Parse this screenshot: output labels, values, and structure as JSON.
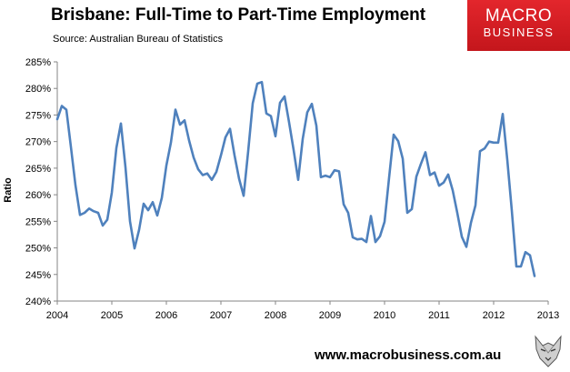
{
  "header": {
    "title": "Brisbane: Full-Time to Part-Time Employment",
    "source": "Source: Australian Bureau of Statistics"
  },
  "logo": {
    "line1": "MACRO",
    "line2": "BUSINESS",
    "color": "#d71f26"
  },
  "footer": {
    "url": "www.macrobusiness.com.au"
  },
  "chart_data": {
    "type": "line",
    "title": "Brisbane: Full-Time to Part-Time Employment",
    "xlabel": "",
    "ylabel": "Ratio",
    "xlim": [
      2004,
      2013
    ],
    "ylim": [
      240,
      285
    ],
    "x_ticks": [
      "2004",
      "2005",
      "2006",
      "2007",
      "2008",
      "2009",
      "2010",
      "2011",
      "2012",
      "2013"
    ],
    "y_ticks": [
      "240%",
      "245%",
      "250%",
      "255%",
      "260%",
      "265%",
      "270%",
      "275%",
      "280%",
      "285%"
    ],
    "grid": false,
    "line_color": "#4f81bd",
    "series": [
      {
        "x": [
          2004.0,
          2004.083,
          2004.167,
          2004.25,
          2004.333,
          2004.417,
          2004.5,
          2004.583,
          2004.667,
          2004.75,
          2004.833,
          2004.917,
          2005.0,
          2005.083,
          2005.167,
          2005.25,
          2005.333,
          2005.417,
          2005.5,
          2005.583,
          2005.667,
          2005.75,
          2005.833,
          2005.917,
          2006.0,
          2006.083,
          2006.167,
          2006.25,
          2006.333,
          2006.417,
          2006.5,
          2006.583,
          2006.667,
          2006.75,
          2006.833,
          2006.917,
          2007.0,
          2007.083,
          2007.167,
          2007.25,
          2007.333,
          2007.417,
          2007.5,
          2007.583,
          2007.667,
          2007.75,
          2007.833,
          2007.917,
          2008.0,
          2008.083,
          2008.167,
          2008.25,
          2008.333,
          2008.417,
          2008.5,
          2008.583,
          2008.667,
          2008.75,
          2008.833,
          2008.917,
          2009.0,
          2009.083,
          2009.167,
          2009.25,
          2009.333,
          2009.417,
          2009.5,
          2009.583,
          2009.667,
          2009.75,
          2009.833,
          2009.917,
          2010.0,
          2010.083,
          2010.167,
          2010.25,
          2010.333,
          2010.417,
          2010.5,
          2010.583,
          2010.667,
          2010.75,
          2010.833,
          2010.917,
          2011.0,
          2011.083,
          2011.167,
          2011.25,
          2011.333,
          2011.417,
          2011.5,
          2011.583,
          2011.667,
          2011.75,
          2011.833,
          2011.917,
          2012.0,
          2012.083,
          2012.167,
          2012.25,
          2012.333,
          2012.417,
          2012.5,
          2012.583,
          2012.667,
          2012.75
        ],
        "y": [
          274.2,
          276.7,
          276.0,
          269.0,
          261.8,
          256.2,
          256.6,
          257.4,
          256.9,
          256.6,
          254.2,
          255.3,
          260.4,
          268.8,
          273.4,
          265.2,
          255.0,
          249.9,
          253.4,
          258.3,
          257.1,
          258.6,
          256.1,
          259.4,
          265.5,
          269.8,
          276.0,
          273.2,
          274.0,
          270.2,
          267.0,
          264.8,
          263.7,
          264.0,
          262.8,
          264.3,
          267.4,
          270.8,
          272.4,
          267.4,
          263.0,
          259.8,
          268.2,
          277.2,
          280.9,
          281.2,
          275.3,
          274.8,
          271.0,
          277.3,
          278.5,
          273.6,
          268.4,
          262.8,
          270.5,
          275.5,
          277.1,
          273.0,
          263.3,
          263.6,
          263.3,
          264.6,
          264.4,
          258.2,
          256.6,
          252.0,
          251.6,
          251.7,
          251.1,
          256.0,
          251.1,
          252.2,
          254.9,
          263.2,
          271.3,
          270.1,
          266.8,
          256.6,
          257.3,
          263.4,
          265.8,
          268.0,
          263.7,
          264.2,
          261.7,
          262.3,
          263.8,
          260.8,
          256.6,
          252.1,
          250.2,
          254.7,
          258.0,
          268.2,
          268.7,
          270.0,
          269.8,
          269.8,
          275.2,
          266.6,
          257.0,
          246.5,
          246.5,
          249.2,
          248.6,
          244.7
        ]
      }
    ]
  }
}
